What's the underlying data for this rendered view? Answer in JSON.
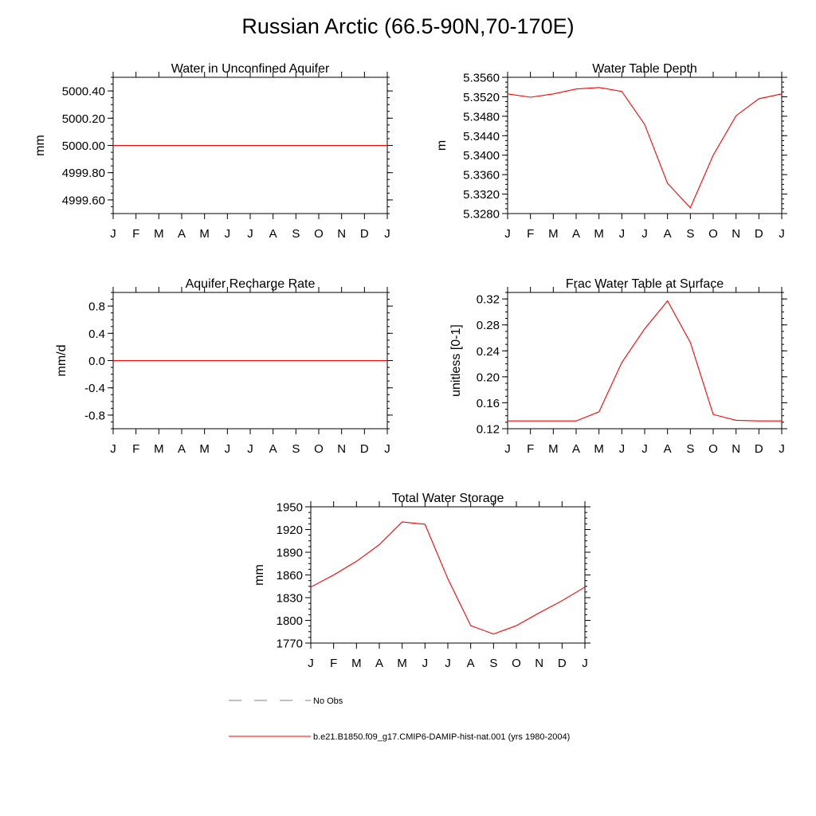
{
  "figure": {
    "title": "Russian Arctic (66.5-90N,70-170E)",
    "line_color": "#ff0000",
    "obs_color": "#808080"
  },
  "legend": {
    "obs_label": "No Obs",
    "model_label": "b.e21.B1850.f09_g17.CMIP6-DAMIP-hist-nat.001 (yrs 1980-2004)"
  },
  "chart_data": [
    {
      "type": "line",
      "title": "Water in Unconfined Aquifer",
      "ylabel": "mm",
      "categories": [
        "J",
        "F",
        "M",
        "A",
        "M",
        "J",
        "J",
        "A",
        "S",
        "O",
        "N",
        "D",
        "J"
      ],
      "ylim": [
        4999.5,
        5000.5
      ],
      "yticks": [
        "4999.60",
        "4999.80",
        "5000.00",
        "5000.20",
        "5000.40"
      ],
      "ytick_values": [
        4999.6,
        4999.8,
        5000.0,
        5000.2,
        5000.4
      ],
      "values": [
        5000,
        5000,
        5000,
        5000,
        5000,
        5000,
        5000,
        5000,
        5000,
        5000,
        5000,
        5000,
        5000
      ]
    },
    {
      "type": "line",
      "title": "Water Table Depth",
      "ylabel": "m",
      "categories": [
        "J",
        "F",
        "M",
        "A",
        "M",
        "J",
        "J",
        "A",
        "S",
        "O",
        "N",
        "D",
        "J"
      ],
      "ylim": [
        5.328,
        5.356
      ],
      "yticks": [
        "5.3280",
        "5.3320",
        "5.3360",
        "5.3400",
        "5.3440",
        "5.3480",
        "5.3520",
        "5.3560"
      ],
      "ytick_values": [
        5.328,
        5.332,
        5.336,
        5.34,
        5.344,
        5.348,
        5.352,
        5.356
      ],
      "values": [
        5.3526,
        5.3519,
        5.3526,
        5.3536,
        5.3539,
        5.3531,
        5.3463,
        5.3342,
        5.3292,
        5.34,
        5.3481,
        5.3516,
        5.3526
      ]
    },
    {
      "type": "line",
      "title": "Aquifer Recharge Rate",
      "ylabel": "mm/d",
      "categories": [
        "J",
        "F",
        "M",
        "A",
        "M",
        "J",
        "J",
        "A",
        "S",
        "O",
        "N",
        "D",
        "J"
      ],
      "ylim": [
        -1.0,
        1.0
      ],
      "yticks": [
        "-0.8",
        "-0.4",
        "0.0",
        "0.4",
        "0.8"
      ],
      "ytick_values": [
        -0.8,
        -0.4,
        0.0,
        0.4,
        0.8
      ],
      "values": [
        0,
        0,
        0,
        0,
        0,
        0,
        0,
        0,
        0,
        0,
        0,
        0,
        0
      ]
    },
    {
      "type": "line",
      "title": "Frac Water Table at Surface",
      "ylabel": "unitless [0-1]",
      "categories": [
        "J",
        "F",
        "M",
        "A",
        "M",
        "J",
        "J",
        "A",
        "S",
        "O",
        "N",
        "D",
        "J"
      ],
      "ylim": [
        0.12,
        0.33
      ],
      "yticks": [
        "0.12",
        "0.16",
        "0.20",
        "0.24",
        "0.28",
        "0.32"
      ],
      "ytick_values": [
        0.12,
        0.16,
        0.2,
        0.24,
        0.28,
        0.32
      ],
      "values": [
        0.132,
        0.132,
        0.132,
        0.132,
        0.146,
        0.222,
        0.274,
        0.317,
        0.253,
        0.142,
        0.133,
        0.132,
        0.132
      ]
    },
    {
      "type": "line",
      "title": "Total Water Storage",
      "ylabel": "mm",
      "categories": [
        "J",
        "F",
        "M",
        "A",
        "M",
        "J",
        "J",
        "A",
        "S",
        "O",
        "N",
        "D",
        "J"
      ],
      "ylim": [
        1770,
        1950
      ],
      "yticks": [
        "1770",
        "1800",
        "1830",
        "1860",
        "1890",
        "1920",
        "1950"
      ],
      "ytick_values": [
        1770,
        1800,
        1830,
        1860,
        1890,
        1920,
        1950
      ],
      "values": [
        1844,
        1860,
        1878,
        1900,
        1930,
        1927,
        1855,
        1793,
        1782,
        1793,
        1810,
        1826,
        1844
      ]
    }
  ]
}
